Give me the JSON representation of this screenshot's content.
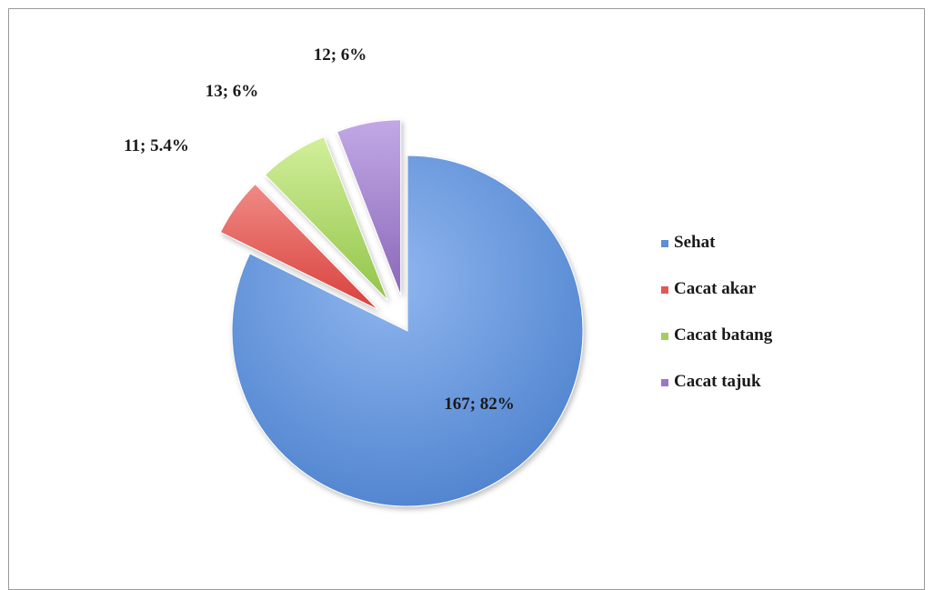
{
  "chart_data": {
    "type": "pie",
    "slices": [
      {
        "name": "Sehat",
        "value": 167,
        "percent_label": "82%",
        "label": "167; 82%",
        "color": "#5b8fd8"
      },
      {
        "name": "Cacat akar",
        "value": 11,
        "percent_label": "5.4%",
        "label": "11; 5.4%",
        "color": "#e05a55"
      },
      {
        "name": "Cacat batang",
        "value": 13,
        "percent_label": "6%",
        "label": "13; 6%",
        "color": "#a3cf5c"
      },
      {
        "name": "Cacat tajuk",
        "value": 12,
        "percent_label": "6%",
        "label": "12; 6%",
        "color": "#9a79c4"
      }
    ],
    "exploded": [
      "Cacat akar",
      "Cacat batang",
      "Cacat tajuk"
    ],
    "legend_position": "right",
    "legend": [
      "Sehat",
      "Cacat akar",
      "Cacat batang",
      "Cacat tajuk"
    ]
  }
}
